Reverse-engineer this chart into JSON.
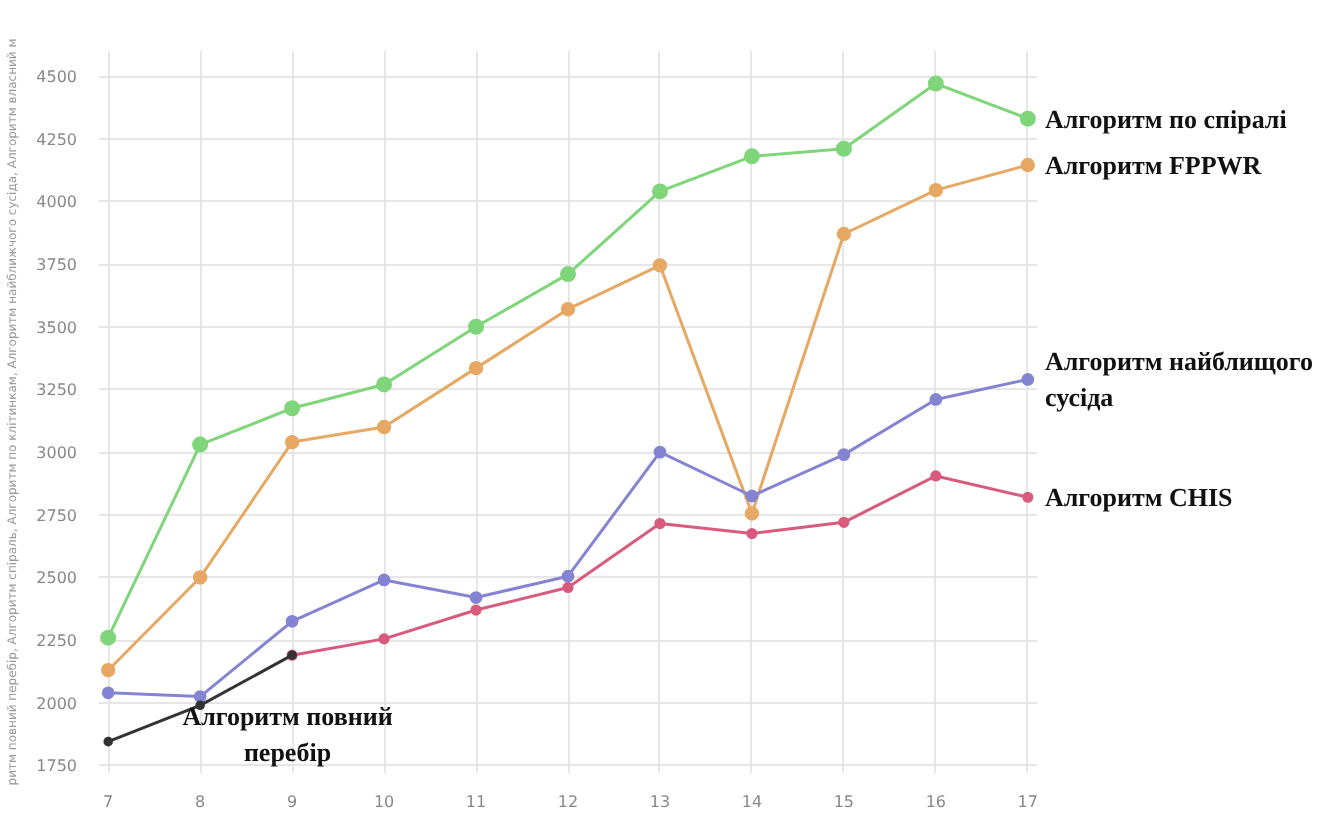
{
  "chart_data": {
    "type": "line",
    "ylabel": "ритм повний перебір, Алгоритм спіраль, Алгоритм по клітинкам, Алгоритм найближчого сусіда, Алгоритм власний м",
    "x": [
      7,
      8,
      9,
      10,
      11,
      12,
      13,
      14,
      15,
      16,
      17
    ],
    "series": [
      {
        "name": "Алгоритм по спіралі",
        "color": "#7fd67a",
        "values": [
          2260,
          3030,
          3175,
          3270,
          3500,
          3710,
          4040,
          4180,
          4210,
          4470,
          4330
        ]
      },
      {
        "name": "Алгоритм FPPWR",
        "color": "#e6a862",
        "values": [
          2130,
          2500,
          3040,
          3100,
          3335,
          3570,
          3745,
          2755,
          3870,
          4045,
          4145
        ]
      },
      {
        "name": "Алгоритм найблищого сусіда",
        "color": "#8484d2",
        "values": [
          2040,
          2025,
          2325,
          2490,
          2420,
          2505,
          3000,
          2825,
          2990,
          3210,
          3290
        ]
      },
      {
        "name": "Алгоритм CHIS",
        "color": "#d85a7c",
        "values": [
          null,
          null,
          2190,
          2255,
          2370,
          2460,
          2715,
          2675,
          2720,
          2905,
          2820
        ]
      },
      {
        "name": "Алгоритм повний перебір",
        "color": "#333333",
        "values": [
          1845,
          1990,
          2190,
          null,
          null,
          null,
          null,
          null,
          null,
          null,
          null
        ]
      }
    ],
    "xlim": [
      6.9,
      17.1
    ],
    "ylim": [
      1720,
      4600
    ],
    "xticks": [
      7,
      8,
      9,
      10,
      11,
      12,
      13,
      14,
      15,
      16,
      17
    ],
    "yticks": [
      1750,
      2000,
      2250,
      2500,
      2750,
      3000,
      3250,
      3500,
      3750,
      4000,
      4250,
      4500
    ],
    "grid": true,
    "marker": "circle",
    "line_style": "solid"
  }
}
